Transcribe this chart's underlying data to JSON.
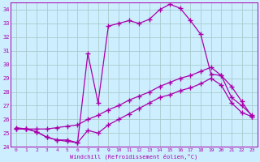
{
  "xlabel": "Windchill (Refroidissement éolien,°C)",
  "bg_color": "#cceeff",
  "grid_color": "#aacccc",
  "line_color": "#aa00aa",
  "xlim": [
    -0.5,
    23.5
  ],
  "ylim": [
    24,
    34.5
  ],
  "yticks": [
    24,
    25,
    26,
    27,
    28,
    29,
    30,
    31,
    32,
    33,
    34
  ],
  "xticks": [
    0,
    1,
    2,
    3,
    4,
    5,
    6,
    7,
    8,
    9,
    10,
    11,
    12,
    13,
    14,
    15,
    16,
    17,
    18,
    19,
    20,
    21,
    22,
    23
  ],
  "line1_x": [
    0,
    1,
    2,
    3,
    4,
    5,
    6,
    7,
    8,
    9,
    10,
    11,
    12,
    13,
    14,
    15,
    16,
    17,
    18,
    19,
    20,
    21,
    22,
    23
  ],
  "line1_y": [
    25.3,
    25.3,
    25.1,
    24.7,
    24.5,
    24.5,
    24.3,
    25.2,
    25.0,
    25.6,
    26.0,
    26.4,
    26.8,
    27.2,
    27.6,
    27.8,
    28.1,
    28.3,
    28.6,
    29.0,
    28.5,
    27.2,
    26.5,
    26.2
  ],
  "line2_x": [
    0,
    1,
    2,
    3,
    4,
    5,
    6,
    7,
    8,
    9,
    10,
    11,
    12,
    13,
    14,
    15,
    16,
    17,
    18,
    19,
    20,
    21,
    22,
    23
  ],
  "line2_y": [
    25.4,
    25.3,
    25.3,
    25.3,
    25.4,
    25.5,
    25.6,
    26.0,
    26.3,
    26.7,
    27.0,
    27.4,
    27.7,
    28.0,
    28.4,
    28.7,
    29.0,
    29.2,
    29.5,
    29.8,
    29.2,
    27.6,
    27.0,
    26.3
  ],
  "line3_x": [
    0,
    1,
    2,
    3,
    4,
    5,
    6,
    7,
    8,
    9,
    10,
    11,
    12,
    13,
    14,
    15,
    16,
    17,
    18,
    19,
    20,
    21,
    22,
    23
  ],
  "line3_y": [
    25.3,
    25.3,
    25.1,
    24.7,
    24.5,
    24.4,
    24.3,
    30.8,
    27.2,
    32.8,
    33.0,
    33.2,
    33.0,
    33.3,
    34.0,
    34.4,
    34.1,
    33.2,
    32.2,
    29.3,
    29.2,
    28.4,
    27.3,
    26.2
  ],
  "marker": "+",
  "markersize": 4,
  "linewidth": 0.9
}
